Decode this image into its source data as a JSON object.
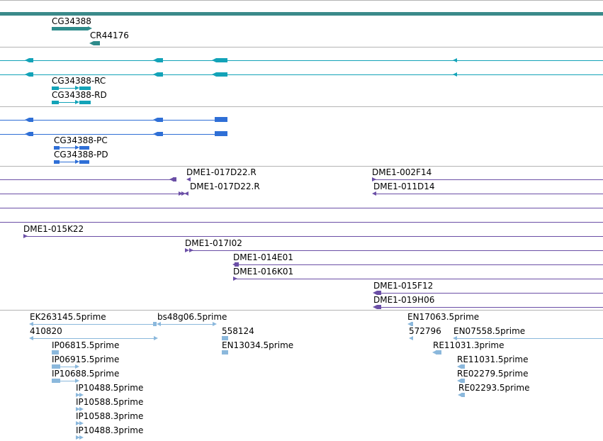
{
  "colors": {
    "scaffold": "#3a8a8a",
    "gene": "#2e8b8b",
    "transcript": "#13a3b8",
    "protein": "#2f6fd6",
    "clone": "#6b4fa6",
    "est": "#8bb8dc",
    "divider": "#b4b4b4"
  },
  "tracks": {
    "gene": {
      "labels": [
        "CG34388",
        "CR44176"
      ]
    },
    "transcript": {
      "labels": [
        "CG34388-RC",
        "CG34388-RD"
      ]
    },
    "protein": {
      "labels": [
        "CG34388-PC",
        "CG34388-PD"
      ]
    },
    "clone": {
      "labels": [
        "DME1-017D22.R",
        "DME1-002F14",
        "DME1-017D22.R",
        "DME1-011D14",
        "DME1-015K22",
        "DME1-017I02",
        "DME1-014E01",
        "DME1-016K01",
        "DME1-015F12",
        "DME1-019H06"
      ]
    },
    "est": {
      "labels": [
        "EK263145.5prime",
        "bs48g06.5prime",
        "EN17063.5prime",
        "410820",
        "558124",
        "572796",
        "EN07558.5prime",
        "IP06815.5prime",
        "EN13034.5prime",
        "RE11031.3prime",
        "IP06915.5prime",
        "RE11031.5prime",
        "IP10688.5prime",
        "RE02279.5prime",
        "IP10488.5prime",
        "RE02293.5prime",
        "IP10588.5prime",
        "IP10588.3prime",
        "IP10488.3prime"
      ]
    }
  }
}
